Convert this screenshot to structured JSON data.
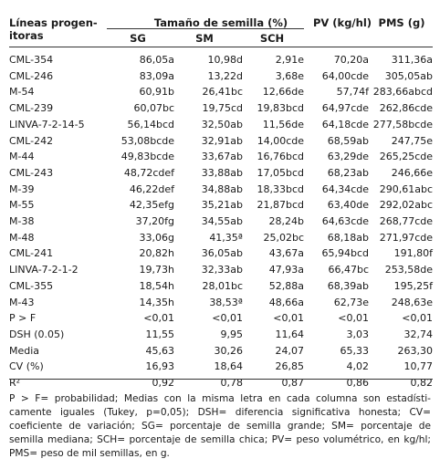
{
  "header": {
    "lines": "Líneas progen-itoras",
    "seed_size": "Tamaño de semilla (%)",
    "sg": "SG",
    "sm": "SM",
    "sch": "SCH",
    "pv": "PV (kg/hl)",
    "pms": "PMS (g)"
  },
  "rows": [
    [
      "CML-354",
      "86,05a",
      "10,98d",
      "2,91e",
      "70,20a",
      "311,36a"
    ],
    [
      "CML-246",
      "83,09a",
      "13,22d",
      "3,68e",
      "64,00cde",
      "305,05ab"
    ],
    [
      "M-54",
      "60,91b",
      "26,41bc",
      "12,66de",
      "57,74f",
      "283,66abcd"
    ],
    [
      "CML-239",
      "60,07bc",
      "19,75cd",
      "19,83bcd",
      "64,97cde",
      "262,86cde"
    ],
    [
      "LINVA-7-2-14-5",
      "56,14bcd",
      "32,50ab",
      "11,56de",
      "64,18cde",
      "277,58bcde"
    ],
    [
      "CML-242",
      "53,08bcde",
      "32,91ab",
      "14,00cde",
      "68,59ab",
      "247,75e"
    ],
    [
      "M-44",
      "49,83bcde",
      "33,67ab",
      "16,76bcd",
      "63,29de",
      "265,25cde"
    ],
    [
      "CML-243",
      "48,72cdef",
      "33,88ab",
      "17,05bcd",
      "68,23ab",
      "246,66e"
    ],
    [
      "M-39",
      "46,22def",
      "34,88ab",
      "18,33bcd",
      "64,34cde",
      "290,61abc"
    ],
    [
      "M-55",
      "42,35efg",
      "35,21ab",
      "21,87bcd",
      "63,40de",
      "292,02abc"
    ],
    [
      "M-38",
      "37,20fg",
      "34,55ab",
      "28,24b",
      "64,63cde",
      "268,77cde"
    ],
    [
      "M-48",
      "33,06g",
      "41,35ª",
      "25,02bc",
      "68,18ab",
      "271,97cde"
    ],
    [
      "CML-241",
      "20,82h",
      "36,05ab",
      "43,67a",
      "65,94bcd",
      "191,80f"
    ],
    [
      "LINVA-7-2-1-2",
      "19,73h",
      "32,33ab",
      "47,93a",
      "66,47bc",
      "253,58de"
    ],
    [
      "CML-355",
      "18,54h",
      "28,01bc",
      "52,88a",
      "68,39ab",
      "195,25f"
    ],
    [
      "M-43",
      "14,35h",
      "38,53ª",
      "48,66a",
      "62,73e",
      "248,63e"
    ],
    [
      "P > F",
      "<0,01",
      "<0,01",
      "<0,01",
      "<0,01",
      "<0,01"
    ],
    [
      "DSH (0.05)",
      "11,55",
      "9,95",
      "11,64",
      "3,03",
      "32,74"
    ],
    [
      "Media",
      "45,63",
      "30,26",
      "24,07",
      "65,33",
      "263,30"
    ],
    [
      "CV (%)",
      "16,93",
      "18,64",
      "26,85",
      "4,02",
      "10,77"
    ],
    [
      "R²",
      "0,92",
      "0,78",
      "0,87",
      "0,86",
      "0,82"
    ]
  ],
  "footnote": "P > F= probabilidad; Medias con la misma letra en cada columna son estadísti-camente iguales (Tukey, p=0,05); DSH= diferencia significativa honesta; CV= coeficiente de variación; SG= porcentaje de semilla grande; SM= porcentaje de semilla mediana; SCH= porcentaje de semilla chica; PV= peso volumétrico, en kg/hl; PMS= peso de mil semillas, en g."
}
